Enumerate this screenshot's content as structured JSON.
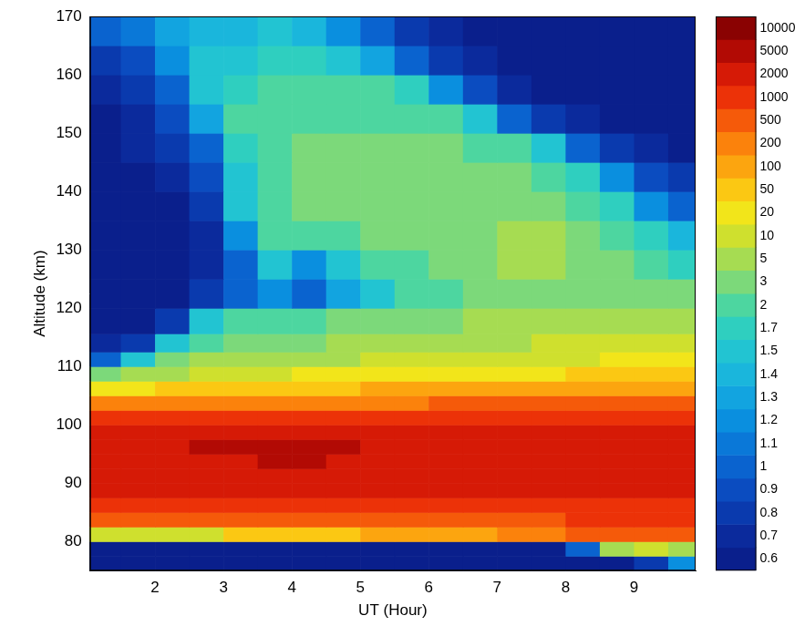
{
  "chart_data": {
    "type": "heatmap",
    "x_label": "UT (Hour)",
    "y_label": "Altitude (km)",
    "xlim": [
      1.05,
      9.9
    ],
    "ylim": [
      75,
      170
    ],
    "xticks": [
      2,
      3,
      4,
      5,
      6,
      7,
      8,
      9
    ],
    "yticks": [
      80,
      90,
      100,
      110,
      120,
      130,
      140,
      150,
      160,
      170
    ],
    "grid": false,
    "x": [
      1.25,
      1.75,
      2.25,
      2.75,
      3.25,
      3.75,
      4.25,
      4.75,
      5.25,
      5.75,
      6.25,
      6.75,
      7.25,
      7.75,
      8.25,
      8.75,
      9.25,
      9.75
    ],
    "y": [
      76.25,
      78.75,
      81.25,
      83.75,
      86.25,
      88.75,
      91.25,
      93.75,
      96.25,
      98.75,
      101.25,
      103.75,
      106.25,
      108.75,
      111.25,
      113.75,
      117.5,
      122.5,
      127.5,
      132.5,
      137.5,
      142.5,
      147.5,
      152.5,
      157.5,
      162.5,
      167.5
    ],
    "z": [
      [
        0.5,
        0.5,
        0.5,
        0.5,
        0.5,
        0.5,
        0.5,
        0.5,
        0.5,
        0.5,
        0.5,
        0.5,
        0.5,
        0.5,
        0.5,
        0.6,
        0.8,
        1.2
      ],
      [
        0.5,
        0.5,
        0.5,
        0.5,
        0.5,
        0.5,
        0.5,
        0.5,
        0.5,
        0.5,
        0.5,
        0.5,
        0.5,
        0.5,
        1,
        5,
        10,
        5
      ],
      [
        10,
        10,
        10,
        10,
        50,
        50,
        50,
        50,
        100,
        100,
        100,
        100,
        200,
        200,
        500,
        500,
        500,
        500
      ],
      [
        800,
        800,
        800,
        800,
        800,
        800,
        800,
        800,
        800,
        800,
        800,
        800,
        800,
        800,
        1000,
        1000,
        1000,
        1000
      ],
      [
        1500,
        1500,
        1500,
        1500,
        1500,
        1500,
        1500,
        1500,
        1500,
        1500,
        1500,
        1500,
        1500,
        1500,
        1500,
        1500,
        1500,
        1500
      ],
      [
        2000,
        2000,
        2000,
        2000,
        2000,
        2000,
        2000,
        2000,
        2000,
        2000,
        2000,
        2000,
        2000,
        2000,
        2000,
        2000,
        2000,
        2000
      ],
      [
        2500,
        2500,
        2500,
        2500,
        2500,
        2500,
        2500,
        2500,
        2500,
        2500,
        2500,
        2500,
        2500,
        2500,
        2500,
        4000,
        4000,
        2500
      ],
      [
        3000,
        3000,
        3000,
        3000,
        3000,
        5500,
        5500,
        3000,
        3000,
        3000,
        4000,
        4000,
        3000,
        3000,
        3000,
        3000,
        3000,
        3000
      ],
      [
        3500,
        3500,
        3500,
        5200,
        5200,
        6000,
        6000,
        6000,
        3500,
        3500,
        3500,
        3500,
        3500,
        3500,
        3500,
        3000,
        3000,
        4500
      ],
      [
        2000,
        3000,
        3000,
        3000,
        2000,
        2000,
        2000,
        2000,
        2000,
        2000,
        2000,
        2000,
        2000,
        2000,
        2000,
        2000,
        2000,
        2000
      ],
      [
        1200,
        1200,
        1200,
        1000,
        1000,
        1000,
        1000,
        1000,
        1000,
        1000,
        1000,
        1000,
        1000,
        1000,
        1000,
        1000,
        1000,
        1000
      ],
      [
        200,
        200,
        200,
        400,
        400,
        400,
        400,
        400,
        400,
        400,
        500,
        500,
        500,
        500,
        500,
        500,
        500,
        500
      ],
      [
        20,
        30,
        50,
        70,
        70,
        70,
        70,
        70,
        100,
        100,
        100,
        100,
        100,
        150,
        150,
        150,
        150,
        150
      ],
      [
        3,
        5,
        8,
        15,
        15,
        15,
        25,
        25,
        25,
        25,
        40,
        40,
        40,
        40,
        50,
        50,
        50,
        50
      ],
      [
        1,
        1.5,
        3,
        5,
        8,
        8,
        8,
        8,
        12,
        12,
        12,
        12,
        18,
        18,
        18,
        22,
        22,
        22
      ],
      [
        0.7,
        0.8,
        1.5,
        2,
        3,
        3,
        3,
        5,
        5,
        5,
        7,
        7,
        7,
        10,
        10,
        10,
        10,
        10
      ],
      [
        0.6,
        0.6,
        0.8,
        1.5,
        2,
        2,
        2.5,
        3,
        3,
        4,
        4,
        5,
        5,
        6,
        6,
        6,
        6,
        6
      ],
      [
        0.5,
        0.5,
        0.6,
        0.8,
        1,
        1.2,
        1,
        1.3,
        1.5,
        2,
        2.5,
        3,
        4,
        4,
        4,
        3.5,
        3,
        3
      ],
      [
        0.5,
        0.5,
        0.6,
        0.7,
        1,
        1.5,
        1.2,
        1.5,
        2,
        2.5,
        3,
        4,
        5,
        5,
        4,
        3,
        2,
        1.8
      ],
      [
        0.5,
        0.5,
        0.6,
        0.7,
        1.2,
        2,
        2.5,
        2.5,
        3,
        3,
        3.5,
        4,
        5,
        5,
        3.5,
        2.5,
        1.7,
        1.4
      ],
      [
        0.5,
        0.5,
        0.6,
        0.8,
        1.5,
        2,
        3,
        3,
        3,
        3.5,
        3.5,
        4,
        4,
        3.5,
        2.5,
        1.7,
        1.2,
        1
      ],
      [
        0.5,
        0.6,
        0.7,
        0.9,
        1.5,
        2.5,
        3,
        3,
        3,
        3,
        3,
        3,
        3,
        2.5,
        1.7,
        1.2,
        0.9,
        0.8
      ],
      [
        0.6,
        0.7,
        0.8,
        1,
        1.7,
        2.5,
        3,
        3,
        3,
        3,
        3,
        2.5,
        2,
        1.5,
        1,
        0.8,
        0.7,
        0.6
      ],
      [
        0.6,
        0.7,
        0.9,
        1.3,
        2,
        2.5,
        2.5,
        2.5,
        2.5,
        2.5,
        2,
        1.5,
        1,
        0.8,
        0.7,
        0.6,
        0.6,
        0.6
      ],
      [
        0.7,
        0.8,
        1,
        1.5,
        1.7,
        2,
        2,
        2,
        2,
        1.7,
        1.2,
        0.9,
        0.7,
        0.6,
        0.6,
        0.5,
        0.5,
        0.5
      ],
      [
        0.8,
        0.9,
        1.2,
        1.5,
        1.5,
        1.7,
        1.7,
        1.5,
        1.3,
        1,
        0.8,
        0.7,
        0.6,
        0.5,
        0.5,
        0.5,
        0.5,
        0.5
      ],
      [
        1,
        1.1,
        1.3,
        1.4,
        1.4,
        1.5,
        1.4,
        1.2,
        1,
        0.8,
        0.7,
        0.6,
        0.5,
        0.5,
        0.5,
        0.5,
        0.5,
        0.5
      ]
    ],
    "colorbar": {
      "levels": [
        0.6,
        0.7,
        0.8,
        0.9,
        1,
        1.1,
        1.2,
        1.3,
        1.4,
        1.5,
        1.7,
        2,
        3,
        5,
        10,
        20,
        50,
        100,
        200,
        500,
        1000,
        2000,
        5000,
        10000
      ],
      "colors": [
        "#0a1f8c",
        "#0b2a9c",
        "#0a3aae",
        "#0b4cc0",
        "#0a63cf",
        "#0a78d8",
        "#0a8fdf",
        "#12a4e0",
        "#1ab6dc",
        "#22c4d2",
        "#2fcfbf",
        "#4dd6a0",
        "#7cd97a",
        "#a6dc52",
        "#cfe02e",
        "#f2e51a",
        "#fbc813",
        "#fca50f",
        "#fb820c",
        "#f55a0a",
        "#ec3208",
        "#d61a06",
        "#b20a04",
        "#8a0202"
      ]
    }
  }
}
